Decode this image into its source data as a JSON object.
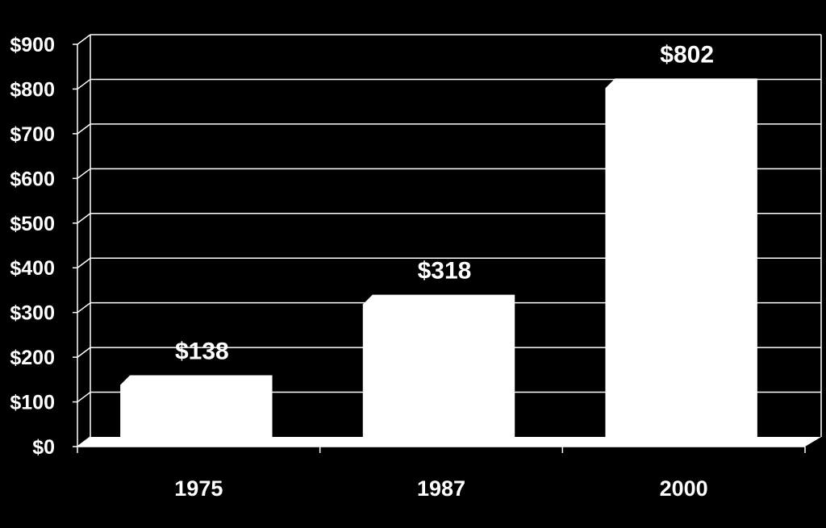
{
  "chart_data": {
    "type": "bar",
    "categories": [
      "1975",
      "1987",
      "2000"
    ],
    "values": [
      138,
      318,
      802
    ],
    "value_labels": [
      "$138",
      "$318",
      "$802"
    ],
    "title": "",
    "xlabel": "",
    "ylabel": "",
    "ylim": [
      0,
      900
    ],
    "yticks": [
      0,
      100,
      200,
      300,
      400,
      500,
      600,
      700,
      800,
      900
    ],
    "ytick_labels": [
      "$0",
      "$100",
      "$200",
      "$300",
      "$400",
      "$500",
      "$600",
      "$700",
      "$800",
      "$900"
    ],
    "grid": true,
    "style": "3d",
    "colors": {
      "background": "#000000",
      "bars": "#ffffff",
      "axis": "#ffffff",
      "text": "#ffffff"
    }
  }
}
